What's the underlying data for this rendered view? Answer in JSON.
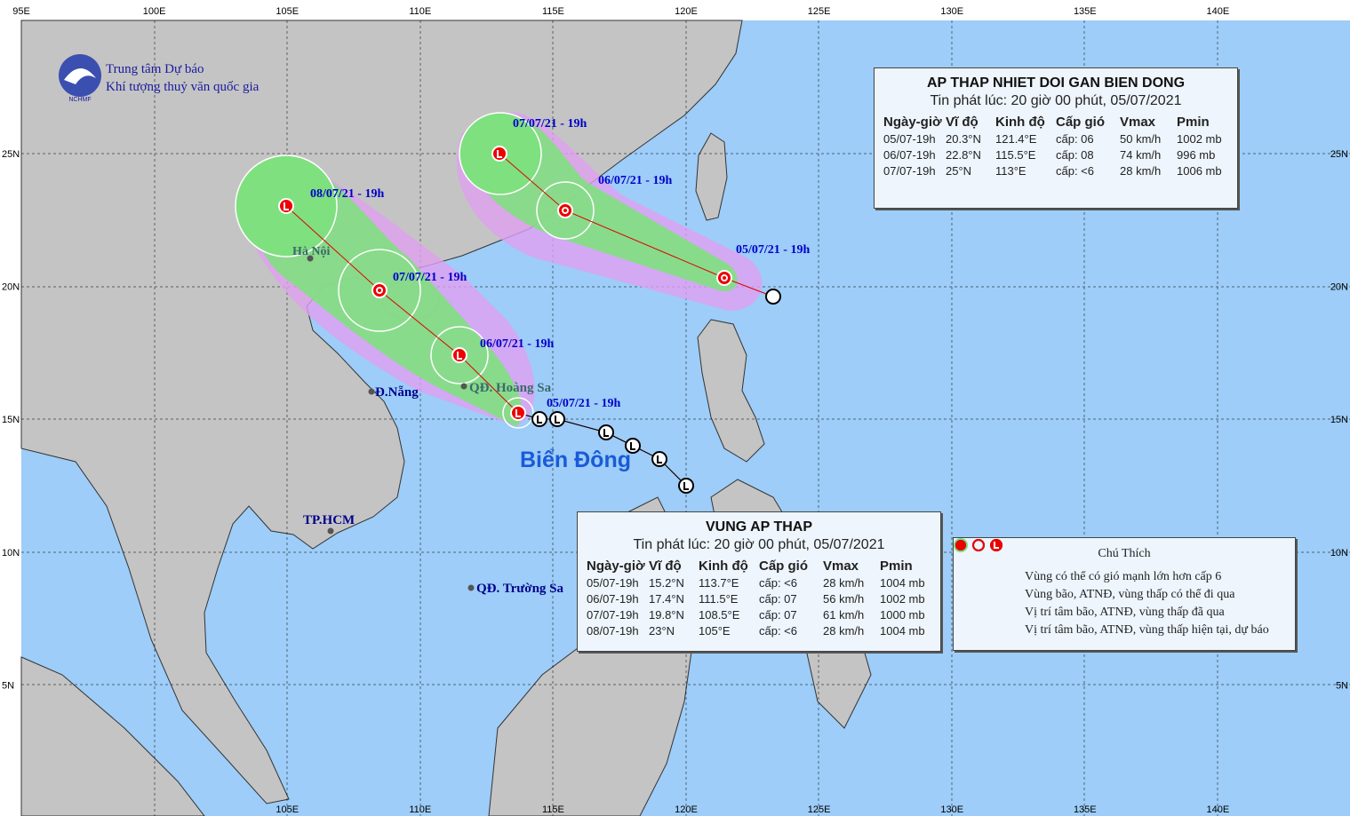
{
  "header": {
    "org_line1": "Trung tâm Dự báo",
    "org_line2": "Khí tượng thuỷ văn quốc gia",
    "logo_text": "NCHMF"
  },
  "grid": {
    "lon_labels_top": [
      "95E",
      "100E",
      "105E",
      "110E",
      "115E",
      "120E",
      "125E",
      "130E",
      "135E",
      "140E"
    ],
    "lon_labels_bottom": [
      "105E",
      "110E",
      "115E",
      "120E",
      "125E",
      "130E",
      "135E",
      "140E"
    ],
    "lat_labels": [
      "25N",
      "20N",
      "15N",
      "10N",
      "5N"
    ]
  },
  "track_labels": {
    "system_1": [
      "05/07/21 - 19h",
      "06/07/21 - 19h",
      "07/07/21 - 19h"
    ],
    "system_2": [
      "05/07/21 - 19h",
      "06/07/21 - 19h",
      "07/07/21 - 19h",
      "08/07/21 - 19h"
    ]
  },
  "places": [
    "Hà Nội",
    "Đ.Nẵng",
    "QĐ. Hoàng Sa",
    "TP.HCM",
    "QĐ. Trường Sa",
    "Biển Đông"
  ],
  "bulletin_1": {
    "title": "AP THAP NHIET DOI GAN BIEN DONG",
    "issued": "Tin phát lúc: 20 giờ 00 phút, 05/07/2021",
    "columns": [
      "Ngày-giờ",
      "Vĩ độ",
      "Kinh độ",
      "Cấp gió",
      "Vmax",
      "Pmin"
    ],
    "rows": [
      [
        "05/07-19h",
        "20.3°N",
        "121.4°E",
        "cấp: 06",
        "50 km/h",
        "1002 mb"
      ],
      [
        "06/07-19h",
        "22.8°N",
        "115.5°E",
        "cấp: 08",
        "74 km/h",
        "996 mb"
      ],
      [
        "07/07-19h",
        "25°N",
        "113°E",
        "cấp: <6",
        "28 km/h",
        "1006 mb"
      ]
    ]
  },
  "bulletin_2": {
    "title": "VUNG AP THAP",
    "issued": "Tin phát lúc: 20 giờ 00 phút, 05/07/2021",
    "columns": [
      "Ngày-giờ",
      "Vĩ độ",
      "Kinh độ",
      "Cấp gió",
      "Vmax",
      "Pmin"
    ],
    "rows": [
      [
        "05/07-19h",
        "15.2°N",
        "113.7°E",
        "cấp: <6",
        "28 km/h",
        "1004 mb"
      ],
      [
        "06/07-19h",
        "17.4°N",
        "111.5°E",
        "cấp: 07",
        "56 km/h",
        "1002 mb"
      ],
      [
        "07/07-19h",
        "19.8°N",
        "108.5°E",
        "cấp: 07",
        "61 km/h",
        "1000 mb"
      ],
      [
        "08/07-19h",
        "23°N",
        "105°E",
        "cấp: <6",
        "28 km/h",
        "1004 mb"
      ]
    ]
  },
  "legend": {
    "title": "Chú Thích",
    "items": [
      "Vùng có thể có gió mạnh lớn hơn cấp 6",
      "Vùng bão, ATNĐ, vùng thấp có thể đi qua",
      "Vị trí tâm bão, ATNĐ, vùng thấp đã qua",
      "Vị trí tâm bão, ATNĐ, vùng thấp hiện tại, dự báo"
    ]
  }
}
